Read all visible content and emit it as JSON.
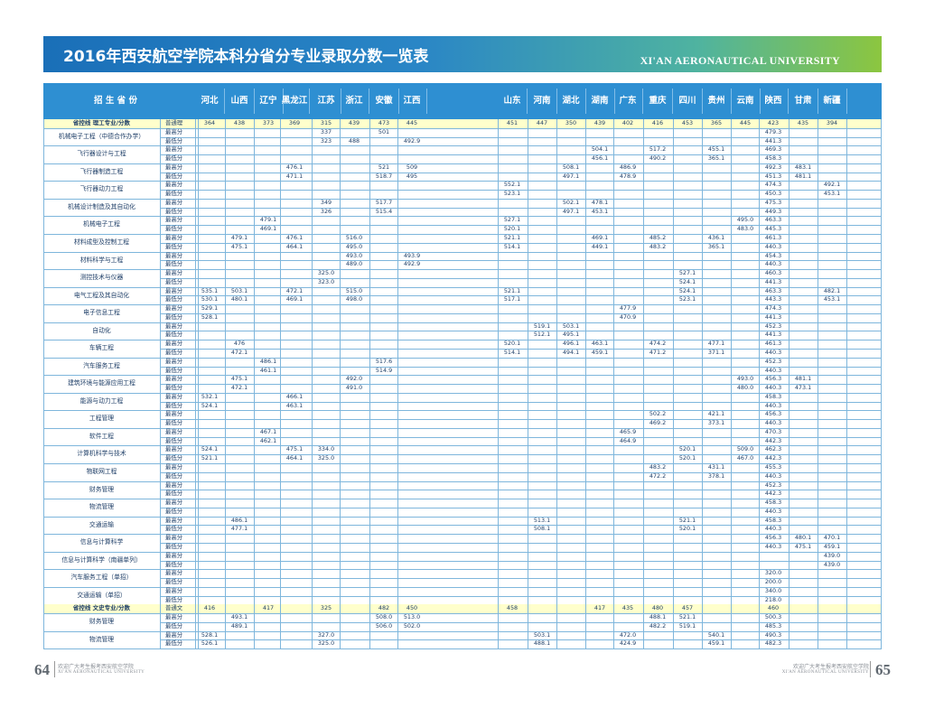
{
  "banner": {
    "title": "2016年西安航空学院本科分省分专业录取分数一览表",
    "subtitle": "XI'AN AERONAUTICAL UNIVERSITY"
  },
  "table": {
    "province_header": "招 生 省 份",
    "provinces": [
      "河北",
      "山西",
      "辽宁",
      "黑龙江",
      "江苏",
      "浙江",
      "安徽",
      "江西",
      "山东",
      "河南",
      "湖北",
      "湖南",
      "广东",
      "重庆",
      "四川",
      "贵州",
      "云南",
      "陕西",
      "甘肃",
      "新疆"
    ],
    "science_line": {
      "label": "省控线 理工专业/分数",
      "kind": "普通理",
      "values": [
        "364",
        "438",
        "373",
        "369",
        "315",
        "439",
        "473",
        "445",
        "451",
        "447",
        "350",
        "439",
        "402",
        "416",
        "453",
        "365",
        "445",
        "423",
        "435",
        "394"
      ]
    },
    "arts_line": {
      "label": "省控线 文史专业/分数",
      "kind": "普通文",
      "values": [
        "416",
        "",
        "417",
        "",
        "325",
        "",
        "482",
        "450",
        "458",
        "",
        "",
        "417",
        "435",
        "480",
        "457",
        "",
        "",
        "460",
        "",
        ""
      ]
    },
    "max_label": "最高分",
    "min_label": "最低分",
    "science_majors": [
      {
        "name": "机械电子工程（中德合作办学）",
        "max": {
          "4": "337",
          "6": "501",
          "17": "479.3"
        },
        "min": {
          "4": "323",
          "5": "488",
          "7": "492.9",
          "17": "441.3"
        }
      },
      {
        "name": "飞行器设计与工程",
        "max": {
          "11": "504.1",
          "13": "517.2",
          "15": "455.1",
          "17": "469.3"
        },
        "min": {
          "11": "456.1",
          "13": "490.2",
          "15": "365.1",
          "17": "458.3"
        }
      },
      {
        "name": "飞行器制造工程",
        "max": {
          "3": "476.1",
          "6": "521",
          "7": "509",
          "10": "508.1",
          "12": "486.9",
          "17": "492.3",
          "18": "483.1"
        },
        "min": {
          "3": "471.1",
          "6": "518.7",
          "7": "495",
          "10": "497.1",
          "12": "478.9",
          "17": "451.3",
          "18": "481.1"
        }
      },
      {
        "name": "飞行器动力工程",
        "max": {
          "8": "552.1",
          "17": "474.3",
          "19": "492.1"
        },
        "min": {
          "8": "523.1",
          "17": "450.3",
          "19": "453.1"
        }
      },
      {
        "name": "机械设计制造及其自动化",
        "max": {
          "4": "349",
          "6": "517.7",
          "10": "502.1",
          "11": "478.1",
          "17": "475.3"
        },
        "min": {
          "4": "326",
          "6": "515.4",
          "10": "497.1",
          "11": "453.1",
          "17": "449.3"
        }
      },
      {
        "name": "机械电子工程",
        "max": {
          "2": "479.1",
          "8": "527.1",
          "16": "495.0",
          "17": "463.3"
        },
        "min": {
          "2": "469.1",
          "8": "520.1",
          "16": "483.0",
          "17": "445.3"
        }
      },
      {
        "name": "材料成型及控制工程",
        "max": {
          "1": "479.1",
          "3": "476.1",
          "5": "516.0",
          "8": "521.1",
          "11": "469.1",
          "13": "485.2",
          "15": "436.1",
          "17": "461.3"
        },
        "min": {
          "1": "475.1",
          "3": "464.1",
          "5": "495.0",
          "8": "514.1",
          "11": "449.1",
          "13": "483.2",
          "15": "365.1",
          "17": "440.3"
        }
      },
      {
        "name": "材料科学与工程",
        "max": {
          "5": "493.0",
          "7": "493.9",
          "17": "454.3"
        },
        "min": {
          "5": "489.0",
          "7": "492.9",
          "17": "440.3"
        }
      },
      {
        "name": "测控技术与仪器",
        "max": {
          "4": "325.0",
          "14": "527.1",
          "17": "460.3"
        },
        "min": {
          "4": "323.0",
          "14": "524.1",
          "17": "441.3"
        }
      },
      {
        "name": "电气工程及其自动化",
        "max": {
          "0": "535.1",
          "1": "503.1",
          "3": "472.1",
          "5": "515.0",
          "8": "521.1",
          "14": "524.1",
          "17": "463.3",
          "19": "482.1"
        },
        "min": {
          "0": "530.1",
          "1": "480.1",
          "3": "469.1",
          "5": "498.0",
          "8": "517.1",
          "14": "523.1",
          "17": "443.3",
          "19": "453.1"
        }
      },
      {
        "name": "电子信息工程",
        "max": {
          "0": "529.1",
          "12": "477.9",
          "17": "474.3"
        },
        "min": {
          "0": "528.1",
          "12": "470.9",
          "17": "441.3"
        }
      },
      {
        "name": "自动化",
        "max": {
          "9": "519.1",
          "10": "503.1",
          "17": "452.3"
        },
        "min": {
          "9": "512.1",
          "10": "495.1",
          "17": "441.3"
        }
      },
      {
        "name": "车辆工程",
        "max": {
          "1": "476",
          "8": "520.1",
          "10": "496.1",
          "11": "463.1",
          "13": "474.2",
          "15": "477.1",
          "17": "461.3"
        },
        "min": {
          "1": "472.1",
          "8": "514.1",
          "10": "494.1",
          "11": "459.1",
          "13": "471.2",
          "15": "371.1",
          "17": "440.3"
        }
      },
      {
        "name": "汽车服务工程",
        "max": {
          "2": "486.1",
          "6": "517.6",
          "17": "452.3"
        },
        "min": {
          "2": "461.1",
          "6": "514.9",
          "17": "440.3"
        }
      },
      {
        "name": "建筑环境与能源应用工程",
        "max": {
          "1": "475.1",
          "5": "492.0",
          "16": "493.0",
          "17": "456.3",
          "18": "481.1"
        },
        "min": {
          "1": "472.1",
          "5": "491.0",
          "16": "480.0",
          "17": "440.3",
          "18": "473.1"
        }
      },
      {
        "name": "能源与动力工程",
        "max": {
          "0": "532.1",
          "3": "466.1",
          "17": "458.3"
        },
        "min": {
          "0": "524.1",
          "3": "463.1",
          "17": "440.3"
        }
      },
      {
        "name": "工程管理",
        "max": {
          "13": "502.2",
          "15": "421.1",
          "17": "456.3"
        },
        "min": {
          "13": "469.2",
          "15": "373.1",
          "17": "440.3"
        }
      },
      {
        "name": "软件工程",
        "max": {
          "2": "467.1",
          "12": "465.9",
          "17": "470.3"
        },
        "min": {
          "2": "462.1",
          "12": "464.9",
          "17": "442.3"
        }
      },
      {
        "name": "计算机科学与技术",
        "max": {
          "0": "524.1",
          "3": "475.1",
          "4": "334.0",
          "14": "520.1",
          "16": "509.0",
          "17": "462.3"
        },
        "min": {
          "0": "521.1",
          "3": "464.1",
          "4": "325.0",
          "14": "520.1",
          "16": "467.0",
          "17": "442.3"
        }
      },
      {
        "name": "物联网工程",
        "max": {
          "13": "483.2",
          "15": "431.1",
          "17": "455.3"
        },
        "min": {
          "13": "472.2",
          "15": "378.1",
          "17": "440.3"
        }
      },
      {
        "name": "财务管理",
        "max": {
          "17": "452.3"
        },
        "min": {
          "17": "442.3"
        }
      },
      {
        "name": "物流管理",
        "max": {
          "17": "458.3"
        },
        "min": {
          "17": "440.3"
        }
      },
      {
        "name": "交通运输",
        "max": {
          "1": "486.1",
          "9": "513.1",
          "14": "521.1",
          "17": "458.3"
        },
        "min": {
          "1": "477.1",
          "9": "508.1",
          "14": "520.1",
          "17": "440.3"
        }
      },
      {
        "name": "信息与计算科学",
        "max": {
          "17": "456.3",
          "18": "480.1",
          "19": "470.1"
        },
        "min": {
          "17": "440.3",
          "18": "475.1",
          "19": "459.1"
        }
      },
      {
        "name": "信息与计算科学（南疆单列）",
        "max": {
          "19": "439.0"
        },
        "min": {
          "19": "439.0"
        }
      },
      {
        "name": "汽车服务工程（单招）",
        "max": {
          "17": "320.0"
        },
        "min": {
          "17": "200.0"
        }
      },
      {
        "name": "交通运输（单招）",
        "max": {
          "17": "340.0"
        },
        "min": {
          "17": "218.0"
        }
      }
    ],
    "arts_majors": [
      {
        "name": "财务管理",
        "max": {
          "1": "493.1",
          "6": "508.0",
          "7": "513.0",
          "13": "488.1",
          "14": "521.1",
          "17": "500.3"
        },
        "min": {
          "1": "489.1",
          "6": "506.0",
          "7": "502.0",
          "13": "482.2",
          "14": "519.1",
          "17": "485.3"
        }
      },
      {
        "name": "物流管理",
        "max": {
          "0": "528.1",
          "4": "327.0",
          "9": "503.1",
          "12": "472.0",
          "15": "540.1",
          "17": "490.3"
        },
        "min": {
          "0": "526.1",
          "4": "325.0",
          "9": "488.1",
          "12": "424.9",
          "15": "459.1",
          "17": "482.3"
        }
      }
    ]
  },
  "footer": {
    "left_page": "64",
    "right_page": "65",
    "slogan": "欢迎广大考生报考西安航空学院",
    "english": "XI'AN AERONAUTICAL UNIVERSITY"
  }
}
